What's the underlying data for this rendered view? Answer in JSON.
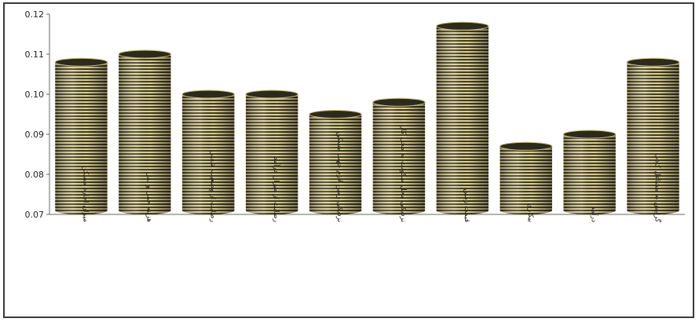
{
  "chart_data": {
    "type": "bar",
    "style": "3d-cylinder",
    "categories": [
      "میزان اجاره مسکن",
      "هزینه حمل و نقل",
      "رضایت از وضعیت شغلی",
      "رضایت از میزان درآمد",
      "نزدیکی زمین لازم جهت مسکن",
      "نزدیکی محل سکونت به محل کار",
      "قیمت زمین",
      "بیکاری",
      "درآمد",
      "گرایش به مشاغل کاذب"
    ],
    "values": [
      0.108,
      0.11,
      0.1,
      0.1,
      0.095,
      0.098,
      0.117,
      0.087,
      0.09,
      0.108
    ],
    "ylim": [
      0.07,
      0.12
    ],
    "yticks": [
      "0.07",
      "0.08",
      "0.09",
      "0.10",
      "0.11",
      "0.12"
    ],
    "grid": false,
    "colors": {
      "fill_light": "#e8dc9c",
      "fill_dark": "#3d3a28",
      "top": "#2a2818"
    }
  }
}
